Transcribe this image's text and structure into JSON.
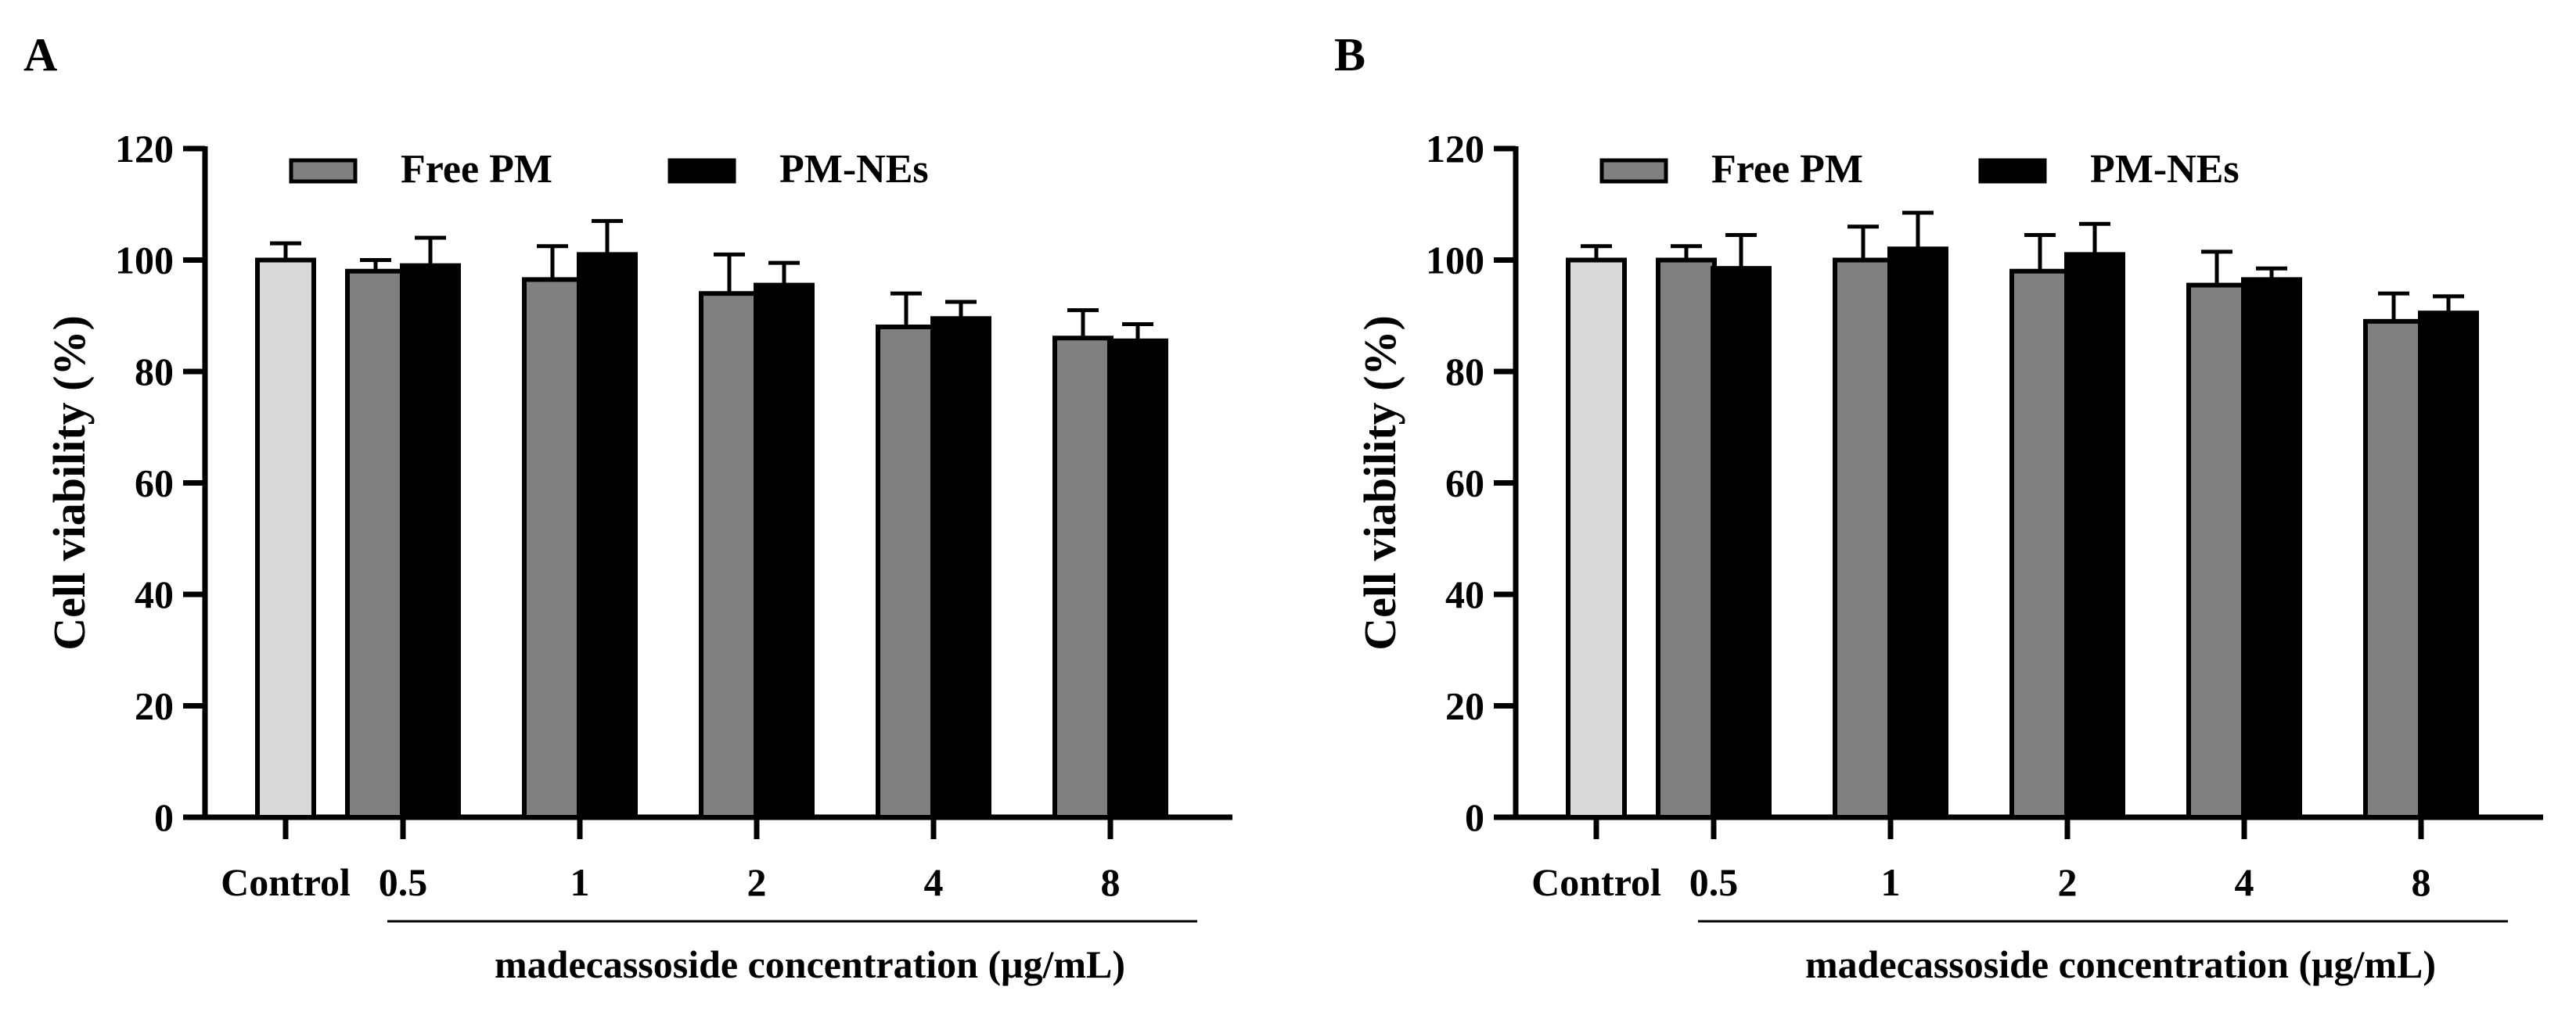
{
  "chart_data": [
    {
      "panel_label": "A",
      "type": "bar",
      "ylabel": "Cell viability (%)",
      "xlabel": "madecassoside concentration (μg/mL)",
      "ylim": [
        0,
        120
      ],
      "yticks": [
        "0",
        "20",
        "40",
        "60",
        "80",
        "100",
        "120"
      ],
      "control": {
        "label": "Control",
        "value": 100.0,
        "error": 3.0
      },
      "categories": [
        "0.5",
        "1",
        "2",
        "4",
        "8"
      ],
      "series": [
        {
          "name": "Free PM",
          "values": [
            98.0,
            96.5,
            94.0,
            88.0,
            86.0
          ],
          "errors": [
            2.0,
            6.0,
            7.0,
            6.0,
            5.0
          ]
        },
        {
          "name": "PM-NEs",
          "values": [
            99.0,
            101.0,
            95.5,
            89.5,
            85.5
          ],
          "errors": [
            5.0,
            6.0,
            4.0,
            3.0,
            3.0
          ]
        }
      ]
    },
    {
      "panel_label": "B",
      "type": "bar",
      "ylabel": "Cell viability (%)",
      "xlabel": "madecassoside concentration (μg/mL)",
      "ylim": [
        0,
        120
      ],
      "yticks": [
        "0",
        "20",
        "40",
        "60",
        "80",
        "100",
        "120"
      ],
      "control": {
        "label": "Control",
        "value": 100.0,
        "error": 2.5
      },
      "categories": [
        "0.5",
        "1",
        "2",
        "4",
        "8"
      ],
      "series": [
        {
          "name": "Free PM",
          "values": [
            100.0,
            100.0,
            98.0,
            95.5,
            89.0
          ],
          "errors": [
            2.5,
            6.0,
            6.5,
            6.0,
            5.0
          ]
        },
        {
          "name": "PM-NEs",
          "values": [
            98.5,
            102.0,
            101.0,
            96.5,
            90.5
          ],
          "errors": [
            6.0,
            6.5,
            5.5,
            2.0,
            3.0
          ]
        }
      ]
    }
  ],
  "colors": {
    "control": "#d9d9d9",
    "free_pm": "#808080",
    "pm_nes": "#000000",
    "axis": "#000000"
  }
}
